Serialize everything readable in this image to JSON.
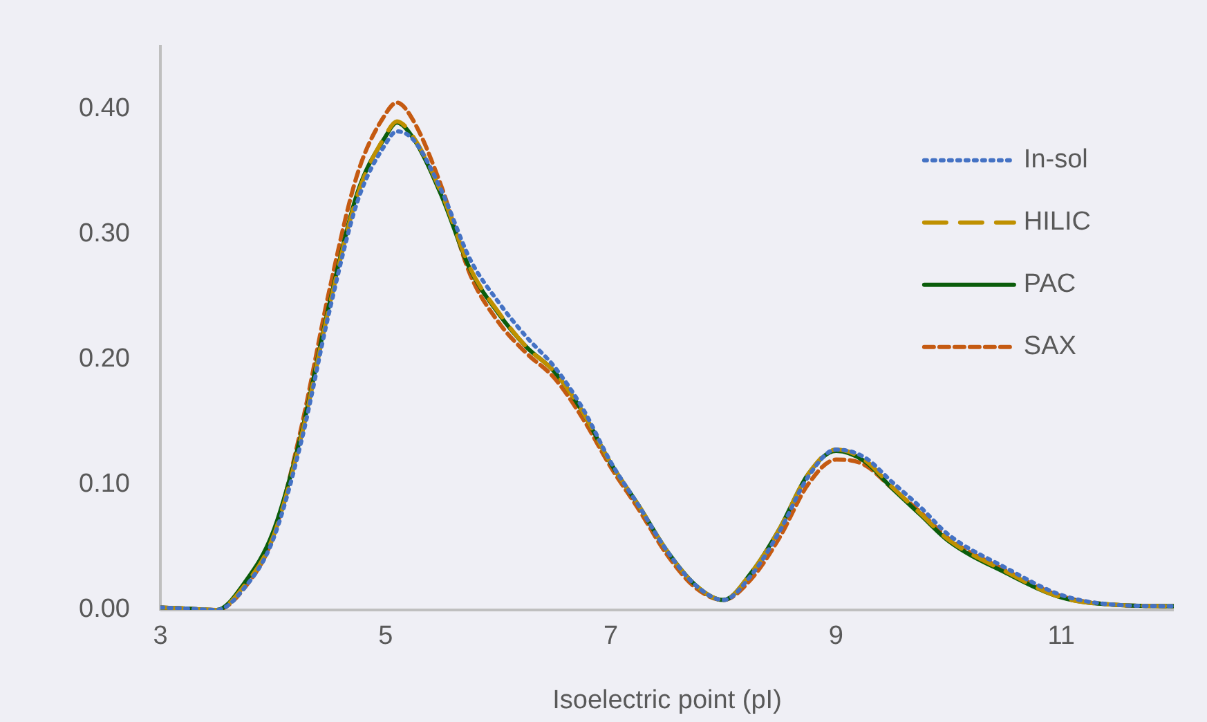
{
  "chart_data": {
    "type": "line",
    "xlabel": "Isoelectric point (pI)",
    "xlim": [
      3,
      12
    ],
    "xticks": [
      3,
      5,
      7,
      9,
      11
    ],
    "ylim": [
      0,
      0.45
    ],
    "yticks": [
      {
        "value": 0,
        "label": "0.00"
      },
      {
        "value": 0.1,
        "label": "0.10"
      },
      {
        "value": 0.2,
        "label": "0.20"
      },
      {
        "value": 0.3,
        "label": "0.30"
      },
      {
        "value": 0.4,
        "label": "0.40"
      }
    ],
    "grid": false,
    "legend": "top right",
    "marker": "none",
    "x": [
      3,
      3.25,
      3.5,
      3.75,
      4,
      4.25,
      4.5,
      4.75,
      5,
      5.1,
      5.25,
      5.5,
      5.75,
      6,
      6.25,
      6.5,
      6.75,
      7,
      7.25,
      7.5,
      7.75,
      8,
      8.25,
      8.5,
      8.75,
      9,
      9.25,
      9.5,
      9.75,
      10,
      10.5,
      11,
      11.5,
      12
    ],
    "series": [
      {
        "name": "In-sol",
        "color": "#4472c4",
        "line_style": "dotted",
        "values": [
          0.002,
          0.001,
          0,
          0.018,
          0.056,
          0.134,
          0.238,
          0.326,
          0.372,
          0.382,
          0.375,
          0.334,
          0.28,
          0.246,
          0.218,
          0.194,
          0.161,
          0.118,
          0.083,
          0.047,
          0.02,
          0.008,
          0.028,
          0.063,
          0.106,
          0.128,
          0.122,
          0.102,
          0.082,
          0.06,
          0.034,
          0.012,
          0.004,
          0.003
        ]
      },
      {
        "name": "HILIC",
        "color": "#bf9000",
        "line_style": "long-dashed",
        "values": [
          0.002,
          0.001,
          0,
          0.02,
          0.058,
          0.138,
          0.242,
          0.331,
          0.379,
          0.39,
          0.377,
          0.332,
          0.273,
          0.238,
          0.21,
          0.19,
          0.158,
          0.117,
          0.083,
          0.047,
          0.02,
          0.008,
          0.03,
          0.065,
          0.108,
          0.128,
          0.12,
          0.098,
          0.077,
          0.056,
          0.031,
          0.01,
          0.004,
          0.003
        ]
      },
      {
        "name": "PAC",
        "color": "#0b5d0b",
        "line_style": "solid",
        "values": [
          0.002,
          0.001,
          0,
          0.022,
          0.062,
          0.14,
          0.244,
          0.333,
          0.378,
          0.389,
          0.376,
          0.33,
          0.272,
          0.237,
          0.21,
          0.19,
          0.158,
          0.117,
          0.083,
          0.047,
          0.02,
          0.008,
          0.03,
          0.065,
          0.108,
          0.127,
          0.119,
          0.097,
          0.076,
          0.055,
          0.03,
          0.01,
          0.004,
          0.003
        ]
      },
      {
        "name": "SAX",
        "color": "#c55a11",
        "line_style": "dashed",
        "values": [
          0.002,
          0.001,
          0,
          0.018,
          0.058,
          0.145,
          0.255,
          0.348,
          0.396,
          0.405,
          0.39,
          0.337,
          0.268,
          0.23,
          0.205,
          0.185,
          0.153,
          0.114,
          0.08,
          0.044,
          0.018,
          0.008,
          0.025,
          0.058,
          0.1,
          0.12,
          0.116,
          0.097,
          0.078,
          0.057,
          0.032,
          0.011,
          0.004,
          0.003
        ]
      }
    ]
  }
}
